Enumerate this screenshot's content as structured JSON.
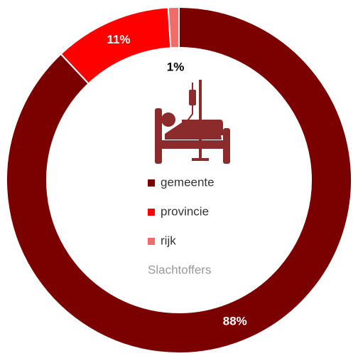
{
  "chart_data": {
    "type": "donut",
    "categories": [
      "gemeente",
      "provincie",
      "rijk"
    ],
    "values": [
      88,
      11,
      1
    ],
    "value_labels": [
      "88%",
      "11%",
      "1%"
    ],
    "colors": [
      "#7b0000",
      "#ff0000",
      "#f26b6b"
    ],
    "legend_title": "Slachtoffers",
    "legend": "center"
  }
}
